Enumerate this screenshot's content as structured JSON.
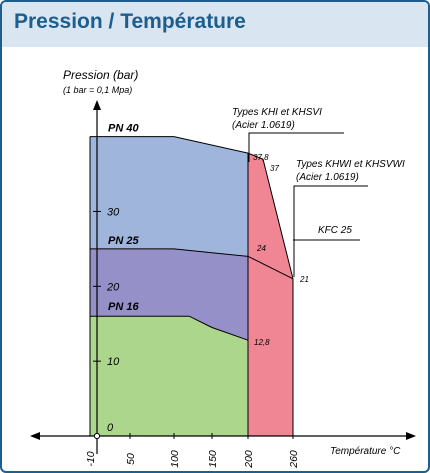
{
  "title": "Pression / Température",
  "colors": {
    "pn40": "#9fb5dc",
    "pn25": "#9690c8",
    "pn16": "#acd68c",
    "steel": "#f08594",
    "accent": "#1d5e8e"
  },
  "chart_data": {
    "type": "area",
    "title": "Pression / Température",
    "ylabel": "Pression (bar)",
    "ylabel_sub": "(1 bar = 0,1 Mpa)",
    "xlabel": "Température °C",
    "xlim": [
      -20,
      300
    ],
    "ylim": [
      0,
      42
    ],
    "x_ticks": [
      -10,
      50,
      100,
      150,
      200,
      260
    ],
    "x_tick_labels": [
      "-10",
      "50",
      "100",
      "150",
      "200",
      "260"
    ],
    "y_ticks": [
      0,
      10,
      20,
      30
    ],
    "y_tick_labels": [
      "0",
      "10",
      "20",
      "30"
    ],
    "origin_label": "0",
    "series": [
      {
        "name": "PN 40",
        "color": "#9fb5dc",
        "x": [
          -10,
          100,
          200
        ],
        "y": [
          40,
          40,
          37.8
        ]
      },
      {
        "name": "PN 25",
        "color": "#9690c8",
        "x": [
          -10,
          100,
          200
        ],
        "y": [
          25,
          25,
          24
        ]
      },
      {
        "name": "PN 16",
        "color": "#acd68c",
        "x": [
          -10,
          120,
          150,
          200
        ],
        "y": [
          16,
          16,
          14.5,
          12.8
        ]
      },
      {
        "name": "Types KHI et KHSVI (Acier 1.0619)",
        "color": "#f08594",
        "x": [
          200,
          220,
          260
        ],
        "y": [
          37.8,
          37,
          21
        ]
      },
      {
        "name": "KFC 25",
        "color": "#000000",
        "x": [
          200,
          260
        ],
        "y": [
          24,
          21
        ]
      }
    ],
    "annotations": [
      {
        "text": "Types KHI et KHSVI",
        "line2": "(Acier 1.0619)"
      },
      {
        "text": "Types KHWI et KHSVWI",
        "line2": "(Acier 1.0619)"
      },
      {
        "text": "KFC 25"
      }
    ],
    "value_labels": [
      "37,8",
      "37",
      "24",
      "21",
      "12,8"
    ]
  }
}
